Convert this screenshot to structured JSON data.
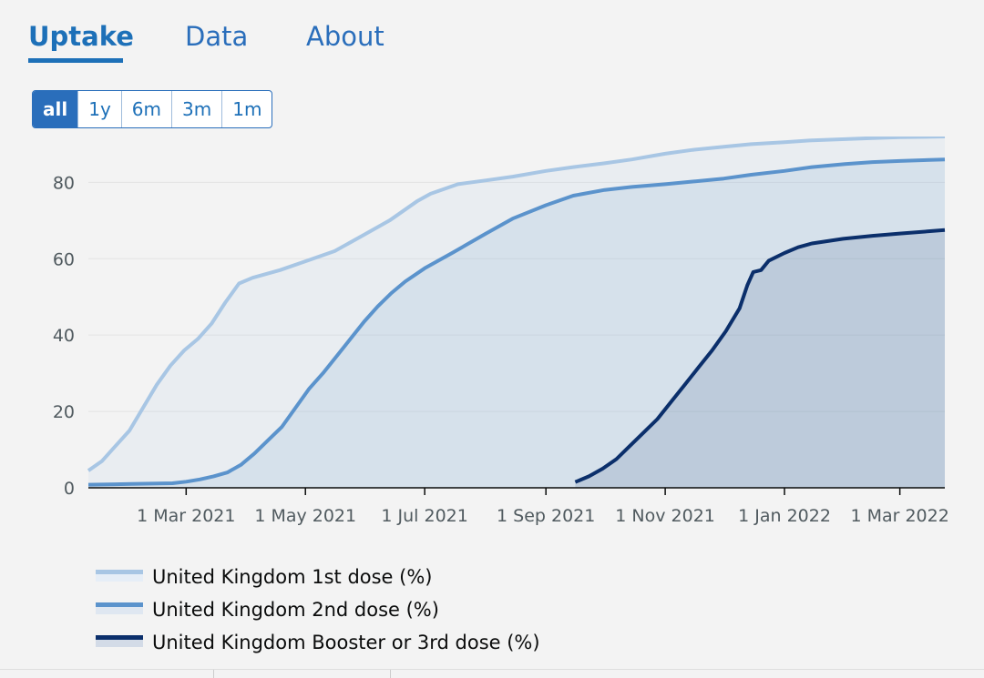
{
  "tabs": [
    {
      "label": "Uptake",
      "active": true
    },
    {
      "label": "Data",
      "active": false
    },
    {
      "label": "About",
      "active": false
    }
  ],
  "range_buttons": [
    {
      "label": "all",
      "active": true
    },
    {
      "label": "1y",
      "active": false
    },
    {
      "label": "6m",
      "active": false
    },
    {
      "label": "3m",
      "active": false
    },
    {
      "label": "1m",
      "active": false
    }
  ],
  "colors": {
    "accent": "#1d70b8",
    "dose1": "#a8c6e4",
    "dose2": "#5b93cc",
    "booster": "#0b2f6b"
  },
  "chart_data": {
    "type": "area",
    "title": "",
    "xlabel": "",
    "ylabel": "",
    "x_range": [
      "2021-01-10",
      "2022-03-24"
    ],
    "y_range": [
      0,
      92
    ],
    "y_ticks": [
      0,
      20,
      40,
      60,
      80
    ],
    "x_ticks": [
      {
        "date": "2021-03-01",
        "label": "1 Mar 2021"
      },
      {
        "date": "2021-05-01",
        "label": "1 May 2021"
      },
      {
        "date": "2021-07-01",
        "label": "1 Jul 2021"
      },
      {
        "date": "2021-09-01",
        "label": "1 Sep 2021"
      },
      {
        "date": "2021-11-01",
        "label": "1 Nov 2021"
      },
      {
        "date": "2022-01-01",
        "label": "1 Jan 2022"
      },
      {
        "date": "2022-03-01",
        "label": "1 Mar 2022"
      }
    ],
    "grid": true,
    "legend_position": "bottom",
    "series": [
      {
        "name": "United Kingdom 1st dose (%)",
        "color": "#a8c6e4",
        "points": [
          [
            "2021-01-10",
            4.5
          ],
          [
            "2021-01-17",
            7
          ],
          [
            "2021-01-24",
            11
          ],
          [
            "2021-01-31",
            15
          ],
          [
            "2021-02-07",
            21
          ],
          [
            "2021-02-14",
            27
          ],
          [
            "2021-02-21",
            32
          ],
          [
            "2021-02-28",
            36
          ],
          [
            "2021-03-07",
            39
          ],
          [
            "2021-03-14",
            43
          ],
          [
            "2021-03-21",
            48.5
          ],
          [
            "2021-03-28",
            53.5
          ],
          [
            "2021-04-04",
            55
          ],
          [
            "2021-04-18",
            57
          ],
          [
            "2021-05-02",
            59.5
          ],
          [
            "2021-05-16",
            62
          ],
          [
            "2021-05-30",
            66
          ],
          [
            "2021-06-13",
            70
          ],
          [
            "2021-06-27",
            75
          ],
          [
            "2021-07-04",
            77
          ],
          [
            "2021-07-18",
            79.5
          ],
          [
            "2021-08-01",
            80.5
          ],
          [
            "2021-08-15",
            81.5
          ],
          [
            "2021-09-01",
            83
          ],
          [
            "2021-09-15",
            84
          ],
          [
            "2021-10-01",
            85
          ],
          [
            "2021-10-15",
            86
          ],
          [
            "2021-11-01",
            87.5
          ],
          [
            "2021-11-15",
            88.5
          ],
          [
            "2021-12-01",
            89.3
          ],
          [
            "2021-12-15",
            90
          ],
          [
            "2022-01-01",
            90.5
          ],
          [
            "2022-01-15",
            91
          ],
          [
            "2022-02-01",
            91.3
          ],
          [
            "2022-02-15",
            91.6
          ],
          [
            "2022-03-01",
            91.8
          ],
          [
            "2022-03-24",
            92
          ]
        ]
      },
      {
        "name": "United Kingdom 2nd dose (%)",
        "color": "#5b93cc",
        "points": [
          [
            "2021-01-10",
            0.8
          ],
          [
            "2021-02-01",
            1
          ],
          [
            "2021-02-22",
            1.2
          ],
          [
            "2021-03-01",
            1.6
          ],
          [
            "2021-03-08",
            2.2
          ],
          [
            "2021-03-15",
            3
          ],
          [
            "2021-03-22",
            4
          ],
          [
            "2021-03-29",
            6
          ],
          [
            "2021-04-05",
            9
          ],
          [
            "2021-04-12",
            12.5
          ],
          [
            "2021-04-19",
            16
          ],
          [
            "2021-04-26",
            21
          ],
          [
            "2021-05-03",
            26
          ],
          [
            "2021-05-10",
            30
          ],
          [
            "2021-05-17",
            34.5
          ],
          [
            "2021-05-24",
            39
          ],
          [
            "2021-05-31",
            43.5
          ],
          [
            "2021-06-07",
            47.5
          ],
          [
            "2021-06-14",
            51
          ],
          [
            "2021-06-21",
            54
          ],
          [
            "2021-07-01",
            57.5
          ],
          [
            "2021-07-15",
            61.5
          ],
          [
            "2021-08-01",
            66.5
          ],
          [
            "2021-08-15",
            70.5
          ],
          [
            "2021-09-01",
            74
          ],
          [
            "2021-09-15",
            76.5
          ],
          [
            "2021-10-01",
            78
          ],
          [
            "2021-10-15",
            78.8
          ],
          [
            "2021-11-01",
            79.5
          ],
          [
            "2021-11-15",
            80.2
          ],
          [
            "2021-12-01",
            81
          ],
          [
            "2021-12-15",
            82
          ],
          [
            "2022-01-01",
            83
          ],
          [
            "2022-01-15",
            84
          ],
          [
            "2022-02-01",
            84.8
          ],
          [
            "2022-02-15",
            85.3
          ],
          [
            "2022-03-01",
            85.6
          ],
          [
            "2022-03-24",
            86
          ]
        ]
      },
      {
        "name": "United Kingdom Booster or 3rd dose (%)",
        "color": "#0b2f6b",
        "points": [
          [
            "2021-09-16",
            1.5
          ],
          [
            "2021-09-23",
            3
          ],
          [
            "2021-09-30",
            5
          ],
          [
            "2021-10-07",
            7.5
          ],
          [
            "2021-10-14",
            11
          ],
          [
            "2021-10-21",
            14.5
          ],
          [
            "2021-10-28",
            18
          ],
          [
            "2021-11-04",
            22.5
          ],
          [
            "2021-11-11",
            27
          ],
          [
            "2021-11-18",
            31.5
          ],
          [
            "2021-11-25",
            36
          ],
          [
            "2021-12-02",
            41
          ],
          [
            "2021-12-09",
            47
          ],
          [
            "2021-12-13",
            53
          ],
          [
            "2021-12-16",
            56.5
          ],
          [
            "2021-12-20",
            57
          ],
          [
            "2021-12-24",
            59.5
          ],
          [
            "2022-01-01",
            61.5
          ],
          [
            "2022-01-08",
            63
          ],
          [
            "2022-01-15",
            64
          ],
          [
            "2022-01-31",
            65.2
          ],
          [
            "2022-02-15",
            66
          ],
          [
            "2022-03-01",
            66.6
          ],
          [
            "2022-03-24",
            67.5
          ]
        ]
      }
    ]
  }
}
